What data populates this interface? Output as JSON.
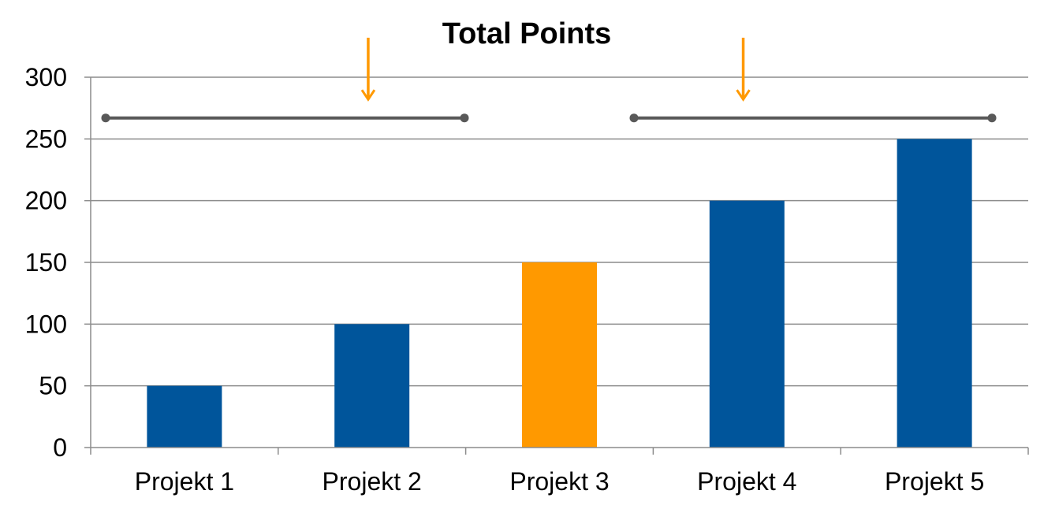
{
  "chart_data": {
    "type": "bar",
    "title": "Total Points",
    "categories": [
      "Projekt 1",
      "Projekt 2",
      "Projekt 3",
      "Projekt 4",
      "Projekt 5"
    ],
    "values": [
      50,
      100,
      150,
      200,
      250
    ],
    "bar_colors": [
      "#00559b",
      "#00559b",
      "#ff9900",
      "#00559b",
      "#00559b"
    ],
    "ylim": [
      0,
      300
    ],
    "yticks": [
      0,
      50,
      100,
      150,
      200,
      250,
      300
    ],
    "grid": true,
    "annotations": {
      "range_lines": [
        {
          "from_category": 0,
          "to_category": 1,
          "y": 267
        },
        {
          "from_category": 3,
          "to_category": 4,
          "y": 267
        }
      ],
      "arrows": [
        {
          "category_gap": [
            1,
            2
          ],
          "y_from": 332,
          "y_to": 282
        },
        {
          "category_gap": [
            3,
            4
          ],
          "y_from": 332,
          "y_to": 282
        }
      ]
    },
    "colors": {
      "grid": "#8c8c8c",
      "axis": "#8c8c8c",
      "range_line": "#595959",
      "arrow": "#ff9900"
    }
  }
}
